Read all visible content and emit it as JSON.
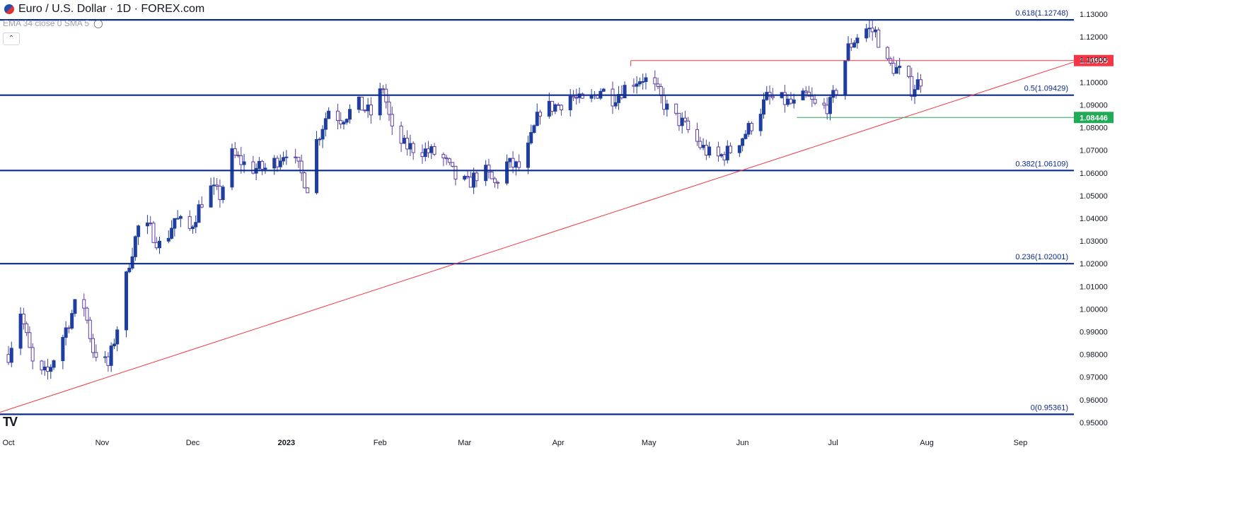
{
  "header": {
    "title": "Euro / U.S. Dollar · 1D · FOREX.com",
    "indicator": "EMA 34 close 0 SMA 5",
    "collapse_icon": "chevron-up-icon",
    "logo": "TV"
  },
  "colors": {
    "bull": "#1f3fa0",
    "bear_border": "#5b3fa3",
    "bear_fill": "#ffffff",
    "fib_line": "#0c2b8a",
    "resistance": "#f23645",
    "support": "#22ab57"
  },
  "chart_data": {
    "type": "candlestick",
    "title": "Euro / U.S. Dollar · 1D · FOREX.com",
    "ylim": [
      0.945,
      1.135
    ],
    "y_ticks": [
      "1.13000",
      "1.12000",
      "1.11000",
      "1.10000",
      "1.09000",
      "1.08000",
      "1.07000",
      "1.06000",
      "1.05000",
      "1.04000",
      "1.03000",
      "1.02000",
      "1.01000",
      "1.00000",
      "0.99000",
      "0.98000",
      "0.97000",
      "0.96000",
      "0.95000"
    ],
    "x_ticks": [
      {
        "label": "Oct",
        "day": 0
      },
      {
        "label": "Nov",
        "day": 31
      },
      {
        "label": "Dec",
        "day": 61
      },
      {
        "label": "2023",
        "day": 92
      },
      {
        "label": "Feb",
        "day": 123
      },
      {
        "label": "Mar",
        "day": 151
      },
      {
        "label": "Apr",
        "day": 182
      },
      {
        "label": "May",
        "day": 212
      },
      {
        "label": "Jun",
        "day": 243
      },
      {
        "label": "Jul",
        "day": 273
      },
      {
        "label": "Aug",
        "day": 304
      },
      {
        "label": "Sep",
        "day": 335
      }
    ],
    "fib_levels": [
      {
        "label": "0.618(1.12748)",
        "value": 1.12748
      },
      {
        "label": "0.5(1.09429)",
        "value": 1.09429
      },
      {
        "label": "0.382(1.06109)",
        "value": 1.06109
      },
      {
        "label": "0.236(1.02001)",
        "value": 1.02001
      },
      {
        "label": "0(0.95361)",
        "value": 0.95361
      }
    ],
    "resistance": {
      "label": "1.10955",
      "value": 1.10955,
      "from_day": 206
    },
    "support": {
      "label": "1.08446",
      "value": 1.08446,
      "from_day": 261
    },
    "trendline": {
      "start": {
        "day": 0,
        "price": 0.9545
      },
      "end": {
        "day": 342,
        "price": 1.1089
      }
    },
    "waypoints": [
      [
        0,
        0.98
      ],
      [
        4,
        0.999
      ],
      [
        9,
        0.97
      ],
      [
        13,
        0.972
      ],
      [
        18,
        0.988
      ],
      [
        24,
        1.008
      ],
      [
        28,
        0.982
      ],
      [
        33,
        0.975
      ],
      [
        36,
        0.992
      ],
      [
        40,
        1.021
      ],
      [
        43,
        1.036
      ],
      [
        47,
        1.035
      ],
      [
        51,
        1.026
      ],
      [
        55,
        1.04
      ],
      [
        60,
        1.035
      ],
      [
        66,
        1.054
      ],
      [
        70,
        1.05
      ],
      [
        74,
        1.068
      ],
      [
        80,
        1.062
      ],
      [
        86,
        1.062
      ],
      [
        92,
        1.07
      ],
      [
        96,
        1.062
      ],
      [
        99,
        1.054
      ],
      [
        102,
        1.074
      ],
      [
        106,
        1.088
      ],
      [
        110,
        1.084
      ],
      [
        116,
        1.09
      ],
      [
        120,
        1.086
      ],
      [
        124,
        1.098
      ],
      [
        127,
        1.078
      ],
      [
        131,
        1.072
      ],
      [
        137,
        1.07
      ],
      [
        143,
        1.068
      ],
      [
        148,
        1.058
      ],
      [
        152,
        1.055
      ],
      [
        157,
        1.062
      ],
      [
        161,
        1.055
      ],
      [
        165,
        1.064
      ],
      [
        170,
        1.062
      ],
      [
        176,
        1.088
      ],
      [
        182,
        1.09
      ],
      [
        186,
        1.094
      ],
      [
        191,
        1.09
      ],
      [
        196,
        1.097
      ],
      [
        200,
        1.093
      ],
      [
        206,
        1.1
      ],
      [
        210,
        1.102
      ],
      [
        214,
        1.097
      ],
      [
        219,
        1.086
      ],
      [
        223,
        1.082
      ],
      [
        229,
        1.072
      ],
      [
        234,
        1.066
      ],
      [
        239,
        1.07
      ],
      [
        243,
        1.076
      ],
      [
        247,
        1.083
      ],
      [
        251,
        1.093
      ],
      [
        256,
        1.092
      ],
      [
        260,
        1.09
      ],
      [
        264,
        1.094
      ],
      [
        268,
        1.088
      ],
      [
        272,
        1.09
      ],
      [
        275,
        1.1
      ],
      [
        278,
        1.115
      ],
      [
        283,
        1.124
      ],
      [
        287,
        1.122
      ],
      [
        291,
        1.108
      ],
      [
        296,
        1.104
      ],
      [
        299,
        1.097
      ],
      [
        302,
        1.101
      ]
    ]
  }
}
